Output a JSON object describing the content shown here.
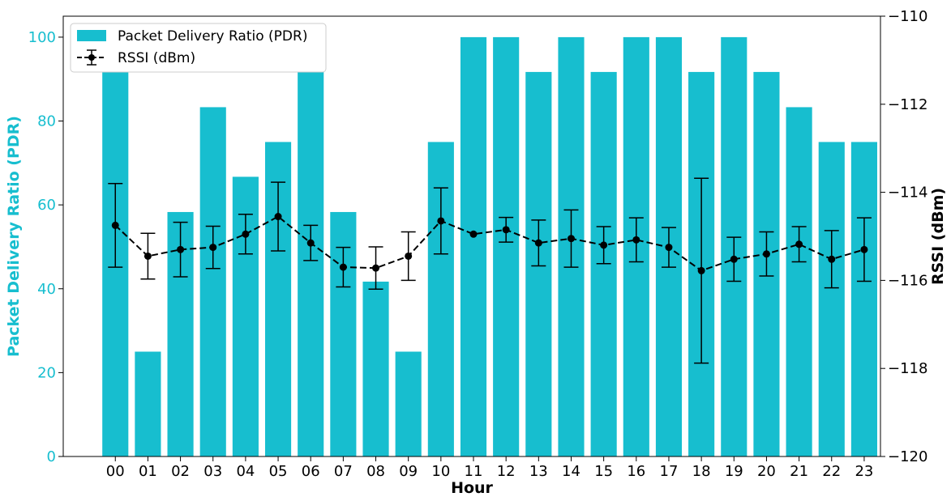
{
  "chart_data": {
    "type": "bar",
    "title": "",
    "xlabel": "Hour",
    "ylabel_left": "Packet Delivery Ratio (PDR)",
    "ylabel_right": "RSSI (dBm)",
    "categories": [
      "00",
      "01",
      "02",
      "03",
      "04",
      "05",
      "06",
      "07",
      "08",
      "09",
      "10",
      "11",
      "12",
      "13",
      "14",
      "15",
      "16",
      "17",
      "18",
      "19",
      "20",
      "21",
      "22",
      "23"
    ],
    "ylim_left": [
      0,
      105
    ],
    "yticks_left": [
      0,
      20,
      40,
      60,
      80,
      100
    ],
    "ylim_right": [
      -120,
      -110
    ],
    "yticks_right": [
      -120,
      -118,
      -116,
      -114,
      -112,
      -110
    ],
    "yticks_right_labels": [
      "−120",
      "−118",
      "−116",
      "−114",
      "−112",
      "−110"
    ],
    "grid": false,
    "legend_position": "top-left",
    "colors": {
      "pdr": "#17becf",
      "rssi": "#000000",
      "left_axis_label": "#17becf"
    },
    "series": [
      {
        "name": "Packet Delivery Ratio (PDR)",
        "type": "bar",
        "axis": "left",
        "values": [
          91.7,
          25,
          58.3,
          83.3,
          66.7,
          75,
          91.7,
          58.3,
          41.7,
          25,
          75,
          100,
          100,
          91.7,
          100,
          91.7,
          100,
          100,
          91.7,
          100,
          91.7,
          83.3,
          75,
          75
        ]
      },
      {
        "name": "RSSI (dBm)",
        "type": "line-errorbar",
        "axis": "right",
        "style": "dashed",
        "values": [
          -114.75,
          -115.45,
          -115.3,
          -115.25,
          -114.95,
          -114.55,
          -115.15,
          -115.7,
          -115.72,
          -115.45,
          -114.65,
          -114.95,
          -114.85,
          -115.15,
          -115.05,
          -115.2,
          -115.08,
          -115.25,
          -115.78,
          -115.52,
          -115.4,
          -115.18,
          -115.52,
          -115.3
        ],
        "errors": [
          0.95,
          0.52,
          0.62,
          0.48,
          0.45,
          0.78,
          0.4,
          0.45,
          0.48,
          0.55,
          0.75,
          0.0,
          0.28,
          0.52,
          0.65,
          0.42,
          0.5,
          0.45,
          2.1,
          0.5,
          0.5,
          0.4,
          0.65,
          0.72
        ]
      }
    ]
  }
}
